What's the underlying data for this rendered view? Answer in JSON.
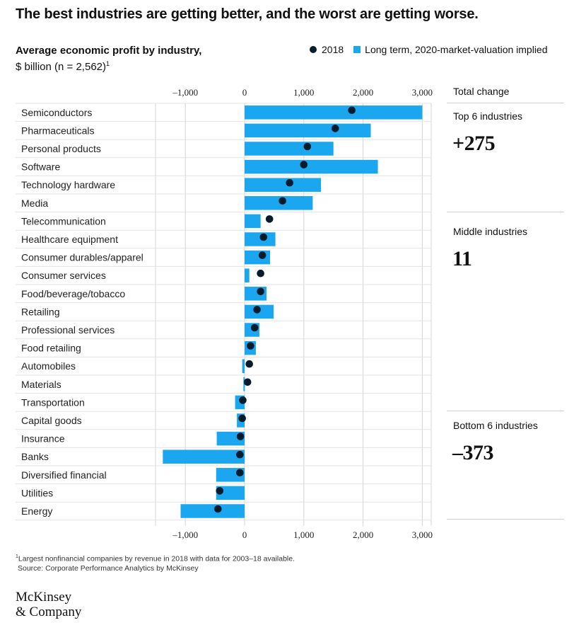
{
  "headline": "The best industries are getting better, and the worst are getting worse.",
  "subtitle": {
    "line1": "Average economic profit by industry,",
    "line2": "$ billion (n = 2,562)",
    "footnote_mark": "1"
  },
  "legend": {
    "dot_label": "2018",
    "bar_label": "Long term, 2020-market-valuation implied"
  },
  "colors": {
    "bar": "#1aa7f0",
    "dot": "#051c2c",
    "grid": "#d4d4d4"
  },
  "panel": {
    "heading": "Total change",
    "groups": [
      {
        "label": "Top 6 industries",
        "value": "+275"
      },
      {
        "label": "Middle industries",
        "value": "11"
      },
      {
        "label": "Bottom 6 industries",
        "value": "–373"
      }
    ]
  },
  "footnote": {
    "mark": "1",
    "text": "Largest nonfinancial companies by revenue in 2018 with data for 2003–18 available.",
    "source": "Source: Corporate Performance Analytics by McKinsey"
  },
  "logo": {
    "line1": "McKinsey",
    "line2": "& Company"
  },
  "chart_data": {
    "type": "bar",
    "orientation": "horizontal",
    "xlim": [
      -1500,
      3000
    ],
    "tick_values": [
      -1000,
      0,
      1000,
      2000,
      3000
    ],
    "tick_labels": [
      "–1,000",
      "0",
      "1,000",
      "2,000",
      "3,000"
    ],
    "grid": true,
    "categories": [
      "Semiconductors",
      "Pharmaceuticals",
      "Personal products",
      "Software",
      "Technology hardware",
      "Media",
      "Telecommunication",
      "Healthcare equipment",
      "Consumer durables/apparel",
      "Consumer services",
      "Food/beverage/tobacco",
      "Retailing",
      "Professional services",
      "Food retailing",
      "Automobiles",
      "Materials",
      "Transportation",
      "Capital goods",
      "Insurance",
      "Banks",
      "Diversified financial",
      "Utilities",
      "Energy"
    ],
    "series": [
      {
        "name": "2018",
        "kind": "dot",
        "values": [
          1810,
          1530,
          1060,
          1000,
          760,
          640,
          420,
          320,
          300,
          270,
          270,
          210,
          170,
          100,
          80,
          50,
          -30,
          -40,
          -70,
          -80,
          -80,
          -420,
          -450
        ]
      },
      {
        "name": "Long term, 2020-market-valuation implied",
        "kind": "bar",
        "values": [
          3010,
          2130,
          1500,
          2250,
          1290,
          1150,
          270,
          520,
          430,
          80,
          370,
          490,
          250,
          190,
          -40,
          -20,
          -160,
          -130,
          -470,
          -1380,
          -480,
          -480,
          -1080
        ]
      }
    ]
  }
}
